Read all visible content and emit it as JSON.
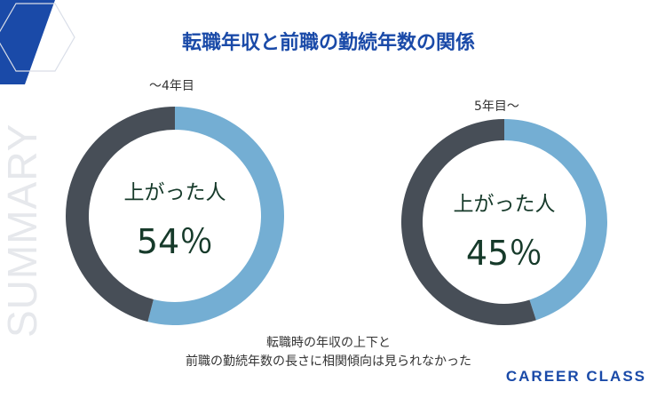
{
  "page": {
    "title": "転職年収と前職の勤続年数の関係",
    "side_text": "SUMMARY",
    "note_lines": [
      "転職時の年収の上下と",
      "前職の勤続年数の長さに相関傾向は見られなかった"
    ],
    "brand": "CAREER CLASS"
  },
  "colors": {
    "accent": "#1a4aa8",
    "raised": "#74aed3",
    "other": "#474e57"
  },
  "chart_data": [
    {
      "type": "pie",
      "label": "〜4年目",
      "center_caption": "上がった人",
      "center_value": "54％",
      "slices": [
        {
          "value": 54,
          "color": "#74aed3"
        },
        {
          "value": 46,
          "color": "#474e57"
        }
      ]
    },
    {
      "type": "pie",
      "label": "5年目〜",
      "center_caption": "上がった人",
      "center_value": "45％",
      "slices": [
        {
          "value": 45,
          "color": "#74aed3"
        },
        {
          "value": 55,
          "color": "#474e57"
        }
      ]
    }
  ]
}
